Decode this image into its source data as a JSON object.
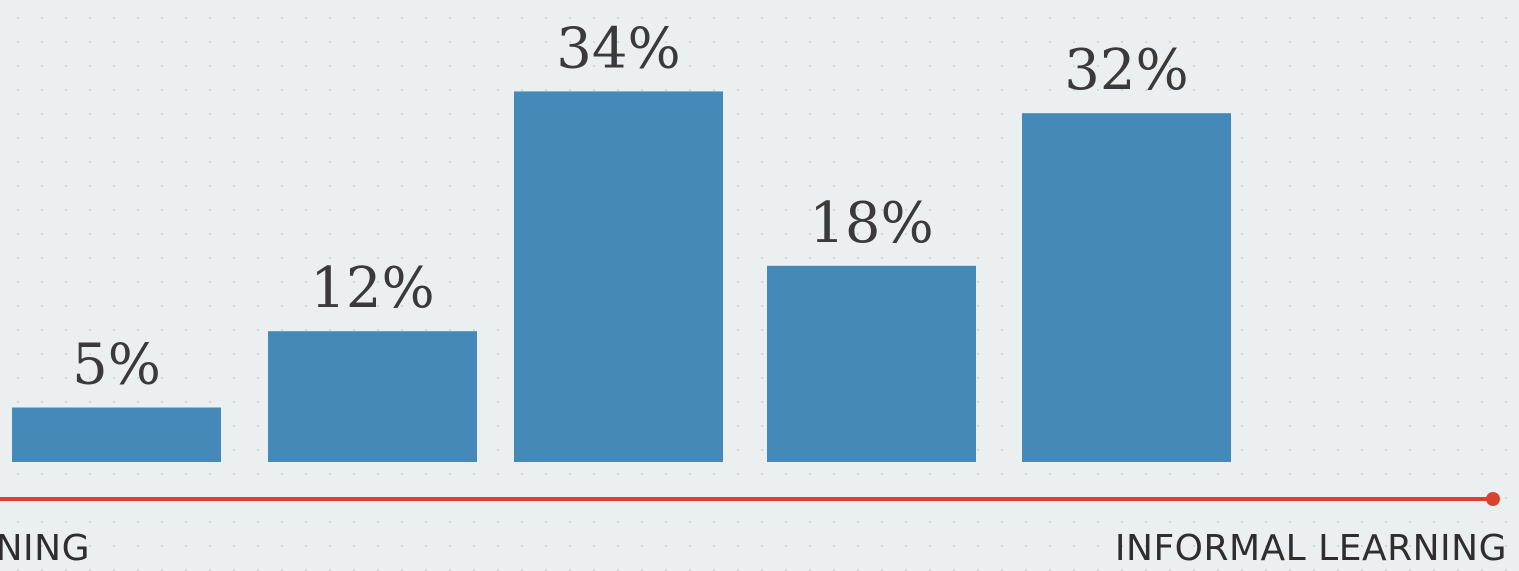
{
  "chart_data": {
    "type": "bar",
    "categories": [
      "",
      "",
      "",
      "",
      ""
    ],
    "values": [
      5,
      12,
      34,
      18,
      32
    ],
    "data_labels": [
      "5%",
      "12%",
      "34%",
      "18%",
      "32%"
    ],
    "ylim": [
      0,
      40
    ],
    "grid": "dotted background",
    "axis_left_label": "NING",
    "axis_right_label": "INFORMAL LEARNING",
    "colors": {
      "bar": "#4589B8",
      "axis_line": "#D9432E",
      "background": "#ECEFF0",
      "text": "#3A3A3A"
    }
  }
}
